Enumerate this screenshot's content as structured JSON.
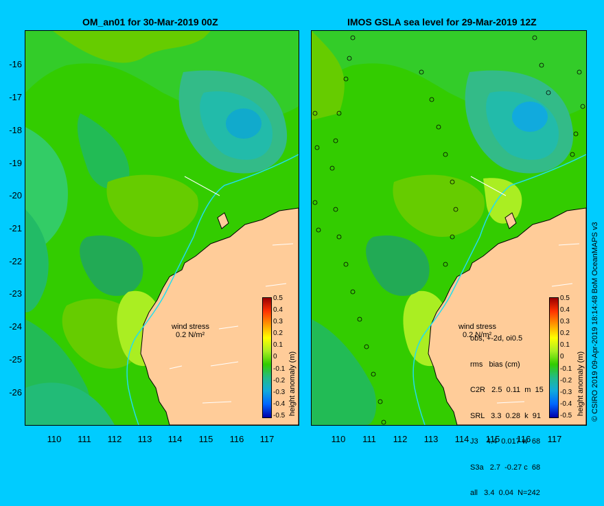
{
  "left_title": "OM_an01 for 30-Mar-2019 00Z",
  "right_title": "IMOS GSLA sea level  for 29-Mar-2019 12Z",
  "lat_ticks": [
    "-16",
    "-17",
    "-18",
    "-19",
    "-20",
    "-21",
    "-22",
    "-23",
    "-24",
    "-25",
    "-26"
  ],
  "lon_ticks": [
    "110",
    "111",
    "112",
    "113",
    "114",
    "115",
    "116",
    "117"
  ],
  "colorbar": {
    "label": "height anomaly (m)",
    "ticks": [
      "0.5",
      "0.4",
      "0.3",
      "0.2",
      "0.1",
      "0",
      "-0.1",
      "-0.2",
      "-0.3",
      "-0.4",
      "-0.5"
    ]
  },
  "wind": {
    "label": "wind stress",
    "scale": "0.2 N/m²"
  },
  "stats": {
    "header1": "obs, +-2d, oi0.5",
    "header2": "rms   bias (cm)",
    "rows": [
      "C2R   2.5  0.11  m  15",
      "SRL   3.3  0.28  k  91",
      "J3    4.4  0.017 w  68",
      "S3a   2.7  -0.27 c  68",
      "all   3.4  0.04  N=242"
    ]
  },
  "credit": "© CSIRO 2019   09-Apr-2019 18:14:48 BoM OceanMAPS v3",
  "colors": {
    "background": "#00ccff",
    "land": "#ffcc99",
    "sea_base": "#33cc00"
  }
}
